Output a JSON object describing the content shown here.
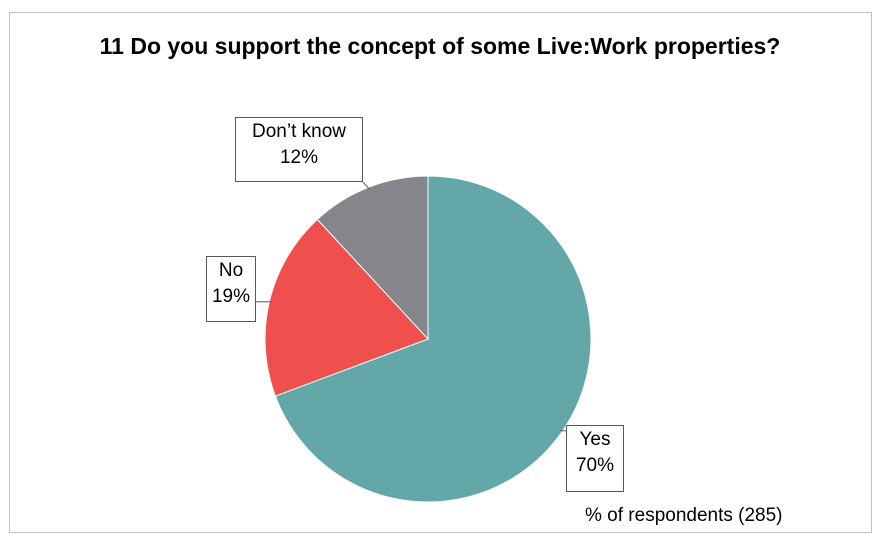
{
  "chart_data": {
    "type": "pie",
    "title": "11 Do you support the concept of some Live:Work properties?",
    "categories": [
      "Yes",
      "No",
      "Don’t know"
    ],
    "values": [
      70,
      19,
      12
    ],
    "value_labels": [
      "70%",
      "19%",
      "12%"
    ],
    "colors": [
      "#64a7a8",
      "#f0504d",
      "#85868a"
    ],
    "legend": "none",
    "note": "% of respondents (285)"
  }
}
